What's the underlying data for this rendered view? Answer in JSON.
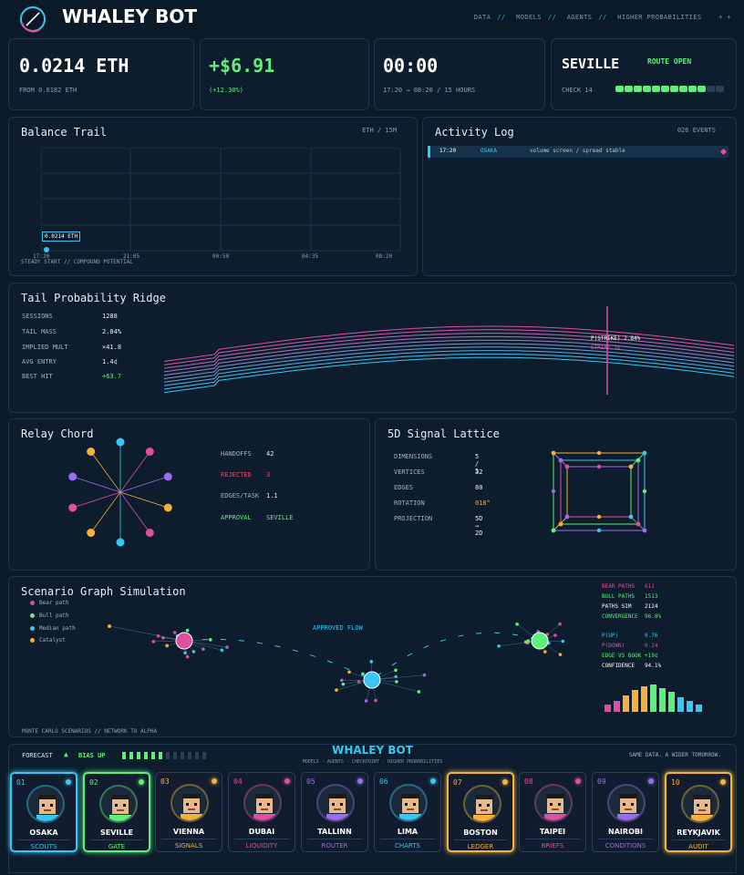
{
  "header": {
    "title": "WHALEY BOT",
    "nav": [
      "DATA",
      "MODELS",
      "AGENTS",
      "HIGHER PROBABILITIES"
    ],
    "nav_extra": "+  +"
  },
  "stats": {
    "balance": {
      "value": "0.0214 ETH",
      "sub": "FROM 0.0182 ETH"
    },
    "pnl": {
      "value": "+$6.91",
      "sub": "(+12.30%)"
    },
    "timer": {
      "value": "00:00",
      "sub": "17:20 → 08:20 / 15 HOURS"
    },
    "route": {
      "city": "SEVILLE",
      "status": "ROUTE OPEN",
      "check": "CHECK 14",
      "progress_filled": 10,
      "progress_total": 12
    }
  },
  "balance_trail": {
    "title": "Balance Trail",
    "meta": "ETH / 15M",
    "marker": "0.0214 ETH",
    "ticks": [
      "17:20",
      "21:05",
      "00:50",
      "04:35",
      "08:20"
    ],
    "footer": "STEADY START  //  COMPOUND POTENTIAL"
  },
  "activity_log": {
    "title": "Activity Log",
    "meta": "026 EVENTS",
    "entries": [
      {
        "time": "17:20",
        "city": "OSAKA",
        "msg": "volume screen / spread stable"
      }
    ]
  },
  "ridge": {
    "title": "Tail Probability Ridge",
    "stats": [
      {
        "label": "SESSIONS",
        "value": "1288"
      },
      {
        "label": "TAIL MASS",
        "value": "2.84%"
      },
      {
        "label": "IMPLIED MULT",
        "value": "×41.8"
      },
      {
        "label": "AVG ENTRY",
        "value": "1.4¢"
      },
      {
        "label": "BEST HIT",
        "value": "+63.7"
      }
    ],
    "strike_label": "P(STRIKE) 2.84%",
    "strike_sub": "STRIKE 1¢"
  },
  "relay": {
    "title": "Relay Chord",
    "stats": [
      {
        "label": "HANDOFFS",
        "value": "42"
      },
      {
        "label": "REJECTED",
        "value": "3"
      },
      {
        "label": "EDGES/TASK",
        "value": "1.1"
      },
      {
        "label": "APPROVAL",
        "value": "SEVILLE"
      }
    ]
  },
  "lattice": {
    "title": "5D Signal Lattice",
    "stats": [
      {
        "label": "DIMENSIONS",
        "value": "5 / 5"
      },
      {
        "label": "VERTICES",
        "value": "32"
      },
      {
        "label": "EDGES",
        "value": "80"
      },
      {
        "label": "ROTATION",
        "value": "018°"
      },
      {
        "label": "PROJECTION",
        "value": "5D → 2D"
      }
    ]
  },
  "scenario": {
    "title": "Scenario Graph Simulation",
    "legend": [
      "Bear path",
      "Bull path",
      "Median path",
      "Catalyst"
    ],
    "flow_label": "APPROVED FLOW",
    "footer": "MONTE CARLO SCENARIOS  //  NETWORK TO ALPHA",
    "stats": [
      {
        "label": "BEAR PATHS",
        "value": "611"
      },
      {
        "label": "BULL PATHS",
        "value": "1513"
      },
      {
        "label": "PATHS SIM",
        "value": "2124"
      },
      {
        "label": "CONVERGENCE",
        "value": "96.8%"
      },
      {
        "label": "P(UP)",
        "value": "0.76"
      },
      {
        "label": "P(DOWN)",
        "value": "0.24"
      },
      {
        "label": "EDGE VS BOOK",
        "value": "+19¢"
      },
      {
        "label": "CONFIDENCE",
        "value": "94.1%"
      }
    ]
  },
  "footer": {
    "forecast": "FORECAST",
    "bias": "BIAS UP",
    "title": "WHALEY BOT",
    "subtitle": "MODELS · AGENTS · CHECKPOINT · HIGHER PROBABILITIES",
    "tagline": "SAME DATA. A WIDER TOMORROW."
  },
  "agents": [
    {
      "num": "01",
      "name": "OSAKA",
      "role": "SCOUTS",
      "color": "#39c6f0"
    },
    {
      "num": "02",
      "name": "SEVILLE",
      "role": "GATE",
      "color": "#5ff07a"
    },
    {
      "num": "03",
      "name": "VIENNA",
      "role": "SIGNALS",
      "color": "#f5b13c"
    },
    {
      "num": "04",
      "name": "DUBAI",
      "role": "LIQUIDITY",
      "color": "#e04ea0"
    },
    {
      "num": "05",
      "name": "TALLINN",
      "role": "ROUTER",
      "color": "#9b6cf0"
    },
    {
      "num": "06",
      "name": "LIMA",
      "role": "CHARTS",
      "color": "#39c6f0"
    },
    {
      "num": "07",
      "name": "BOSTON",
      "role": "LEDGER",
      "color": "#f5b13c"
    },
    {
      "num": "08",
      "name": "TAIPEI",
      "role": "BRIEFS",
      "color": "#e04ea0"
    },
    {
      "num": "09",
      "name": "NAIROBI",
      "role": "CONDITIONS",
      "color": "#9b6cf0"
    },
    {
      "num": "10",
      "name": "REYKJAVIK",
      "role": "AUDIT",
      "color": "#f5b13c"
    }
  ]
}
